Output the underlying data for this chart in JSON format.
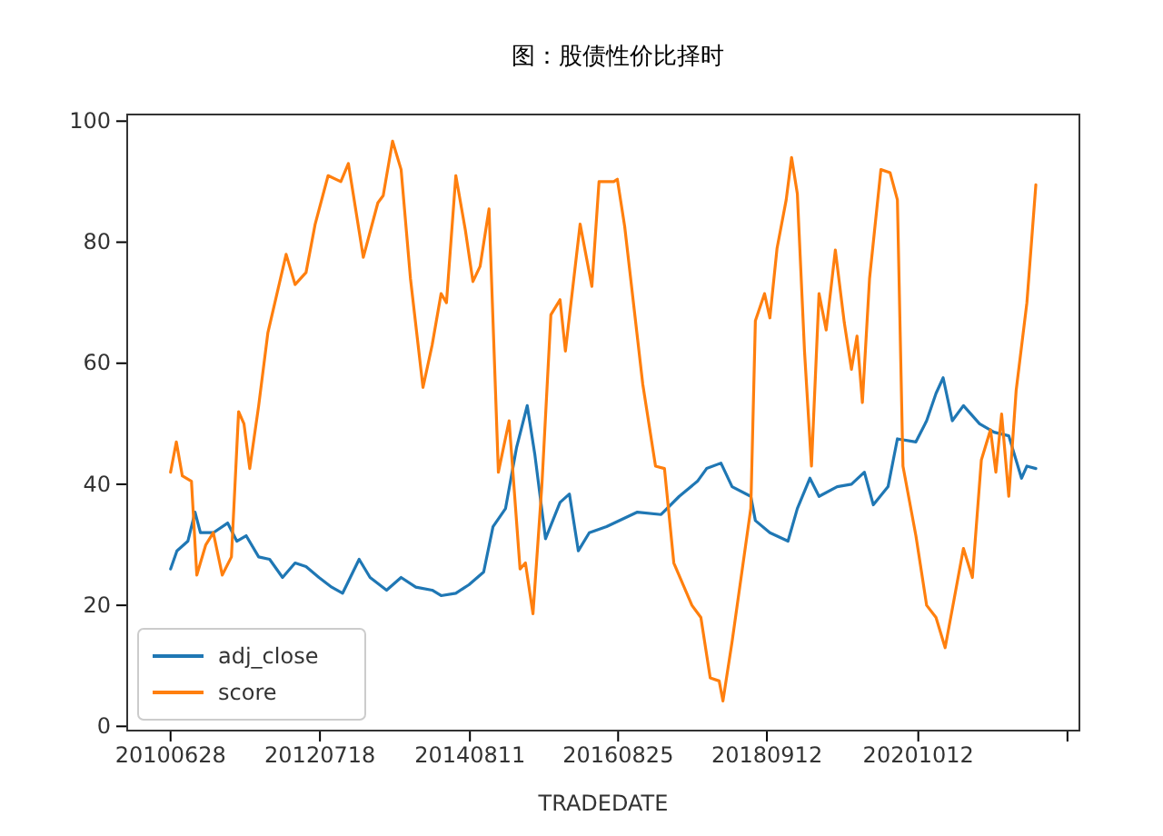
{
  "chart_data": {
    "type": "line",
    "title": "图：股债性价比择时",
    "xlabel": "TRADEDATE",
    "xlim": [
      "2009-11-22",
      "2022-12-31"
    ],
    "ylim": [
      -0.7,
      101.1
    ],
    "xticks": [
      {
        "value": "2010-06-28",
        "label": "20100628"
      },
      {
        "value": "2012-07-18",
        "label": "20120718"
      },
      {
        "value": "2014-08-11",
        "label": "20140811"
      },
      {
        "value": "2016-08-25",
        "label": "20160825"
      },
      {
        "value": "2018-09-12",
        "label": "20180912"
      },
      {
        "value": "2020-10-12",
        "label": "20201012"
      },
      {
        "value": "2022-11-01",
        "label": null
      }
    ],
    "yticks": [
      0,
      20,
      40,
      60,
      80,
      100
    ],
    "legend": "bottom left",
    "grid": false,
    "marker": "none",
    "line_style": "solid",
    "series": [
      {
        "name": "adj_close",
        "color": "#1f77b4",
        "x": [
          "2010-06-28",
          "2010-07-30",
          "2010-09-23",
          "2010-10-29",
          "2010-11-25",
          "2011-01-29",
          "2011-04-11",
          "2011-05-27",
          "2011-07-13",
          "2011-09-14",
          "2011-11-08",
          "2012-01-12",
          "2012-03-15",
          "2012-05-09",
          "2012-07-13",
          "2012-09-15",
          "2012-11-09",
          "2013-01-31",
          "2013-03-27",
          "2013-06-18",
          "2013-08-30",
          "2013-11-12",
          "2014-02-02",
          "2014-03-19",
          "2014-06-01",
          "2014-08-06",
          "2014-10-19",
          "2014-12-05",
          "2015-02-06",
          "2015-04-02",
          "2015-05-26",
          "2015-07-03",
          "2015-08-26",
          "2015-11-07",
          "2015-12-24",
          "2016-02-07",
          "2016-04-02",
          "2016-06-28",
          "2016-11-30",
          "2017-03-29",
          "2017-06-28",
          "2017-09-28",
          "2017-11-13",
          "2018-01-24",
          "2018-03-21",
          "2018-06-23",
          "2018-07-16",
          "2018-09-27",
          "2018-12-27",
          "2019-02-12",
          "2019-04-16",
          "2019-06-01",
          "2019-08-31",
          "2019-11-11",
          "2020-01-15",
          "2020-02-29",
          "2020-05-13",
          "2020-06-29",
          "2020-09-30",
          "2020-11-23",
          "2021-01-09",
          "2021-02-14",
          "2021-04-01",
          "2021-05-27",
          "2021-08-16",
          "2021-10-28",
          "2022-01-10",
          "2022-03-15",
          "2022-04-11",
          "2022-05-26"
        ],
        "values": [
          26,
          29,
          30.6,
          35.4,
          32,
          32,
          33.6,
          30.6,
          31.5,
          28,
          27.6,
          24.6,
          27,
          26.4,
          24.6,
          23,
          22,
          27.6,
          24.6,
          22.5,
          24.6,
          23,
          22.5,
          21.6,
          22,
          23.4,
          25.5,
          33,
          36,
          46,
          53,
          45,
          31,
          37,
          38.4,
          29,
          32,
          33,
          35.4,
          35,
          38,
          40.5,
          42.6,
          43.5,
          39.6,
          38,
          34,
          32,
          30.6,
          36,
          41,
          38,
          39.6,
          40,
          42,
          36.6,
          39.6,
          47.5,
          47,
          50.5,
          55,
          57.6,
          50.5,
          53,
          50,
          48.6,
          48,
          41,
          43,
          42.6
        ]
      },
      {
        "name": "score",
        "color": "#ff7f0e",
        "x": [
          "2010-06-28",
          "2010-07-27",
          "2010-08-26",
          "2010-10-11",
          "2010-11-07",
          "2010-12-22",
          "2011-01-29",
          "2011-03-15",
          "2011-04-30",
          "2011-06-05",
          "2011-07-02",
          "2011-07-31",
          "2011-09-14",
          "2011-10-30",
          "2012-01-30",
          "2012-03-15",
          "2012-05-09",
          "2012-06-24",
          "2012-08-28",
          "2012-10-31",
          "2012-12-08",
          "2013-02-21",
          "2013-05-05",
          "2013-06-01",
          "2013-07-18",
          "2013-08-30",
          "2013-10-16",
          "2013-12-18",
          "2014-02-02",
          "2014-03-19",
          "2014-04-15",
          "2014-06-01",
          "2014-07-19",
          "2014-08-26",
          "2014-10-01",
          "2014-11-15",
          "2015-01-01",
          "2015-02-24",
          "2015-04-20",
          "2015-05-17",
          "2015-06-24",
          "2015-08-08",
          "2015-09-22",
          "2015-11-07",
          "2015-12-04",
          "2016-02-16",
          "2016-04-15",
          "2016-05-21",
          "2016-08-03",
          "2016-08-21",
          "2016-09-27",
          "2016-12-27",
          "2017-03-01",
          "2017-04-15",
          "2017-06-01",
          "2017-08-31",
          "2017-10-15",
          "2017-12-01",
          "2018-01-15",
          "2018-02-03",
          "2018-03-21",
          "2018-06-23",
          "2018-07-16",
          "2018-08-31",
          "2018-09-27",
          "2018-11-02",
          "2018-12-18",
          "2019-01-14",
          "2019-02-12",
          "2019-03-20",
          "2019-04-24",
          "2019-06-01",
          "2019-07-07",
          "2019-08-22",
          "2019-10-06",
          "2019-11-11",
          "2019-12-09",
          "2020-01-05",
          "2020-02-10",
          "2020-04-07",
          "2020-05-23",
          "2020-06-29",
          "2020-07-27",
          "2020-09-30",
          "2020-11-23",
          "2021-01-09",
          "2021-02-24",
          "2021-04-10",
          "2021-05-27",
          "2021-07-11",
          "2021-08-25",
          "2021-10-10",
          "2021-11-06",
          "2021-12-05",
          "2022-01-10",
          "2022-02-16",
          "2022-04-11",
          "2022-05-26"
        ],
        "values": [
          42,
          47,
          41.4,
          40.5,
          25,
          30,
          32,
          25,
          28,
          52,
          50,
          42.6,
          53,
          65,
          78,
          73,
          75,
          83,
          91,
          90,
          93,
          77.5,
          86.5,
          87.7,
          96.7,
          92,
          74,
          56,
          63,
          71.5,
          70,
          91,
          82,
          73.5,
          76,
          85.5,
          42,
          50.5,
          26,
          27,
          18.6,
          40,
          68,
          70.5,
          62,
          83,
          72.7,
          90,
          90,
          90.4,
          82.6,
          56.5,
          43,
          42.6,
          27,
          20,
          18,
          8,
          7.5,
          4.2,
          14,
          36,
          67,
          71.5,
          67.5,
          79,
          87,
          94,
          88,
          62,
          43,
          71.5,
          65.5,
          78.7,
          66.7,
          59,
          64.5,
          53.5,
          74,
          92,
          91.5,
          87,
          43,
          31.5,
          20,
          18,
          13,
          21,
          29.4,
          24.6,
          44,
          49,
          42,
          51.6,
          38,
          55.5,
          70,
          89.5
        ]
      }
    ]
  }
}
